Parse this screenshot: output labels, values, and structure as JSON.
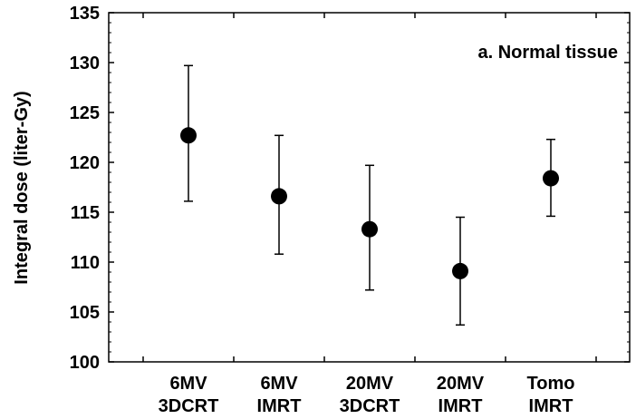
{
  "chart_data": {
    "type": "scatter",
    "title": "",
    "annotation": "a. Normal tissue",
    "xlabel": "",
    "ylabel": "Integral dose (liter-Gy)",
    "ylim": [
      100,
      135
    ],
    "y_ticks": [
      100,
      105,
      110,
      115,
      120,
      125,
      130,
      135
    ],
    "y_tick_labels": [
      "100",
      "105",
      "110",
      "115",
      "120",
      "125",
      "130",
      "135"
    ],
    "grid": false,
    "categories": [
      [
        "6MV",
        "3DCRT"
      ],
      [
        "6MV",
        "IMRT"
      ],
      [
        "20MV",
        "3DCRT"
      ],
      [
        "20MV",
        "IMRT"
      ],
      [
        "Tomo",
        "IMRT"
      ]
    ],
    "series": [
      {
        "values": [
          122.7,
          116.6,
          113.3,
          109.1,
          118.4
        ],
        "error_low": [
          116.1,
          110.8,
          107.2,
          103.7,
          114.6
        ],
        "error_high": [
          129.7,
          122.7,
          119.7,
          114.5,
          122.3
        ]
      }
    ],
    "marker_color": "#000000"
  }
}
